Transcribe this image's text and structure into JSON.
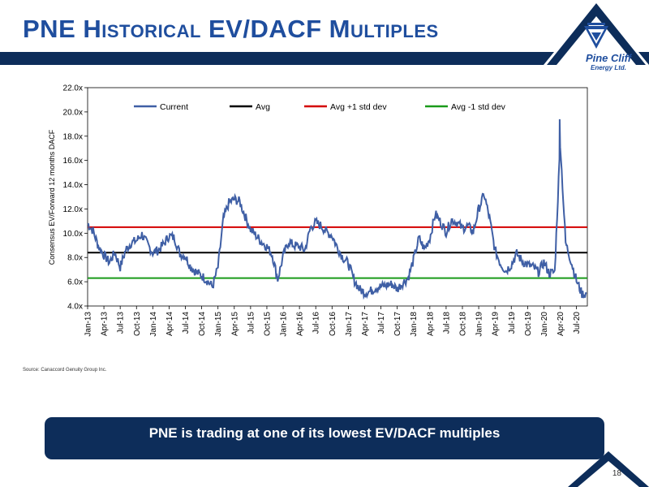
{
  "header": {
    "title": "PNE Historical EV/DACF Multiples",
    "logo_name": "Pine Cliff",
    "logo_sub": "Energy Ltd."
  },
  "colors": {
    "navy": "#0d2d5a",
    "title_blue": "#1f4e9e",
    "current": "#3f5fa5",
    "avg": "#000000",
    "plus_std": "#d40000",
    "minus_std": "#1a9a1a"
  },
  "chart_data": {
    "type": "line",
    "ylabel": "Consensus EV/Forward 12 months DACF",
    "xlabel": "",
    "ylim": [
      4.0,
      22.0
    ],
    "yticks": [
      "22.0x",
      "20.0x",
      "18.0x",
      "16.0x",
      "14.0x",
      "12.0x",
      "10.0x",
      "8.0x",
      "6.0x",
      "4.0x"
    ],
    "xticks": [
      "Jan-13",
      "Apr-13",
      "Jul-13",
      "Oct-13",
      "Jan-14",
      "Apr-14",
      "Jul-14",
      "Oct-14",
      "Jan-15",
      "Apr-15",
      "Jul-15",
      "Oct-15",
      "Jan-16",
      "Apr-16",
      "Jul-16",
      "Oct-16",
      "Jan-17",
      "Apr-17",
      "Jul-17",
      "Oct-17",
      "Jan-18",
      "Apr-18",
      "Jul-18",
      "Oct-18",
      "Jan-19",
      "Apr-19",
      "Jul-19",
      "Oct-19",
      "Jan-20",
      "Apr-20",
      "Jul-20"
    ],
    "legend": [
      "Current",
      "Avg",
      "Avg +1 std dev",
      "Avg -1 std dev"
    ],
    "legend_position": "top",
    "reference_lines": {
      "avg": 8.4,
      "plus_std": 10.5,
      "minus_std": 6.3
    },
    "series": [
      {
        "name": "Current",
        "x": [
          "Jan-13",
          "Feb-13",
          "Mar-13",
          "Apr-13",
          "May-13",
          "Jun-13",
          "Jul-13",
          "Aug-13",
          "Sep-13",
          "Oct-13",
          "Nov-13",
          "Dec-13",
          "Jan-14",
          "Feb-14",
          "Mar-14",
          "Apr-14",
          "May-14",
          "Jun-14",
          "Jul-14",
          "Aug-14",
          "Sep-14",
          "Oct-14",
          "Nov-14",
          "Dec-14",
          "Jan-15",
          "Feb-15",
          "Mar-15",
          "Apr-15",
          "May-15",
          "Jun-15",
          "Jul-15",
          "Aug-15",
          "Sep-15",
          "Oct-15",
          "Nov-15",
          "Dec-15",
          "Jan-16",
          "Feb-16",
          "Mar-16",
          "Apr-16",
          "May-16",
          "Jun-16",
          "Jul-16",
          "Aug-16",
          "Sep-16",
          "Oct-16",
          "Nov-16",
          "Dec-16",
          "Jan-17",
          "Feb-17",
          "Mar-17",
          "Apr-17",
          "May-17",
          "Jun-17",
          "Jul-17",
          "Aug-17",
          "Sep-17",
          "Oct-17",
          "Nov-17",
          "Dec-17",
          "Jan-18",
          "Feb-18",
          "Mar-18",
          "Apr-18",
          "May-18",
          "Jun-18",
          "Jul-18",
          "Aug-18",
          "Sep-18",
          "Oct-18",
          "Nov-18",
          "Dec-18",
          "Jan-19",
          "Feb-19",
          "Mar-19",
          "Apr-19",
          "May-19",
          "Jun-19",
          "Jul-19",
          "Aug-19",
          "Sep-19",
          "Oct-19",
          "Nov-19",
          "Dec-19",
          "Jan-20",
          "Feb-20",
          "Mar-20",
          "Apr-20",
          "May-20",
          "Jun-20",
          "Jul-20",
          "Aug-20"
        ],
        "values": [
          10.8,
          10.2,
          8.9,
          8.2,
          7.6,
          8.4,
          7.2,
          8.6,
          9.2,
          9.4,
          9.9,
          9.1,
          8.4,
          8.6,
          9.1,
          9.8,
          9.6,
          8.3,
          8.1,
          7.2,
          6.8,
          6.5,
          6.1,
          5.6,
          7.2,
          11.2,
          12.5,
          12.8,
          12.6,
          11.4,
          10.3,
          9.8,
          9.3,
          8.9,
          8.2,
          6.2,
          8.1,
          9.3,
          9.0,
          8.9,
          8.6,
          10.4,
          10.9,
          10.6,
          10.1,
          9.8,
          8.8,
          8.0,
          7.5,
          6.2,
          5.4,
          5.1,
          5.2,
          5.5,
          5.6,
          5.7,
          5.8,
          5.4,
          5.9,
          6.3,
          7.8,
          9.6,
          8.7,
          9.6,
          11.6,
          10.9,
          10.1,
          11.1,
          10.9,
          10.4,
          10.6,
          10.1,
          12.0,
          13.2,
          11.2,
          8.6,
          7.5,
          6.9,
          7.4,
          8.3,
          7.7,
          7.4,
          7.2,
          6.8,
          7.6,
          6.7,
          6.8,
          17.5,
          9.2,
          7.7,
          6.1,
          5.0
        ]
      }
    ]
  },
  "source": "Source: Canaccord Genuity Group Inc.",
  "callout": "PNE is trading at one of its lowest EV/DACF multiples",
  "page_number": "18"
}
